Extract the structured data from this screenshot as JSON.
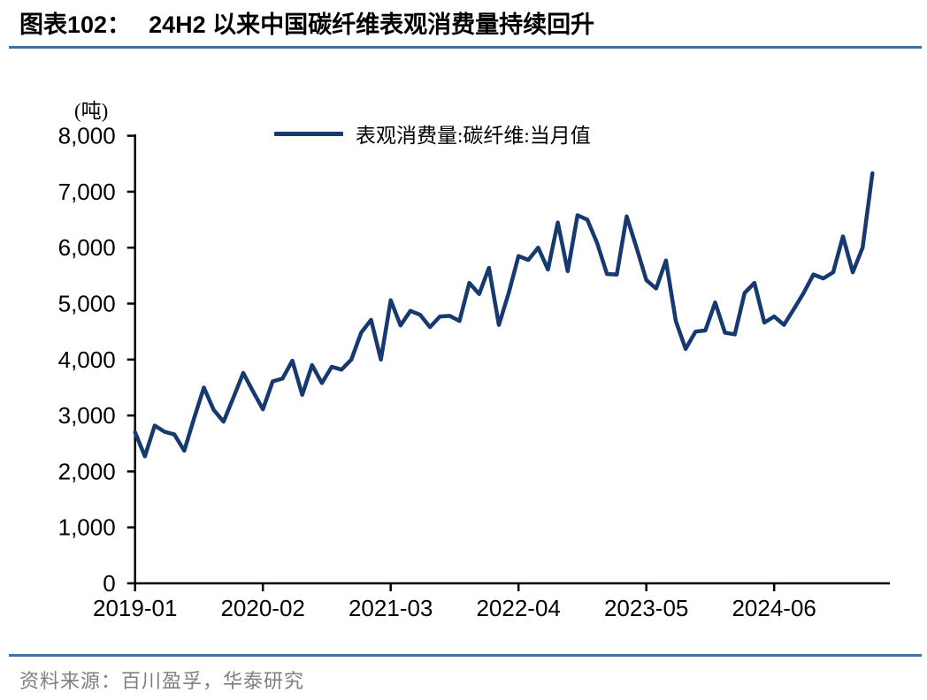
{
  "header": {
    "chart_label": "图表102：",
    "title": "24H2 以来中国碳纤维表观消费量持续回升"
  },
  "chart": {
    "unit": "(吨)",
    "legend": "表观消费量:碳纤维:当月值",
    "line_color": "#16396F",
    "accent_rule_color": "#41719C"
  },
  "footer": {
    "source": "资料来源：百川盈孚，华泰研究"
  },
  "chart_data": {
    "type": "line",
    "title": "24H2 以来中国碳纤维表观消费量持续回升",
    "ylabel": "(吨)",
    "xlabel": "",
    "ylim": [
      0,
      8000
    ],
    "yticks": [
      0,
      1000,
      2000,
      3000,
      4000,
      5000,
      6000,
      7000,
      8000
    ],
    "xticks": [
      "2019-01",
      "2020-02",
      "2021-03",
      "2022-04",
      "2023-05",
      "2024-06"
    ],
    "grid": false,
    "legend_position": "top",
    "x": [
      "2019-01",
      "2019-02",
      "2019-03",
      "2019-04",
      "2019-05",
      "2019-06",
      "2019-07",
      "2019-08",
      "2019-09",
      "2019-10",
      "2019-11",
      "2019-12",
      "2020-01",
      "2020-02",
      "2020-03",
      "2020-04",
      "2020-05",
      "2020-06",
      "2020-07",
      "2020-08",
      "2020-09",
      "2020-10",
      "2020-11",
      "2020-12",
      "2021-01",
      "2021-02",
      "2021-03",
      "2021-04",
      "2021-05",
      "2021-06",
      "2021-07",
      "2021-08",
      "2021-09",
      "2021-10",
      "2021-11",
      "2021-12",
      "2022-01",
      "2022-02",
      "2022-03",
      "2022-04",
      "2022-05",
      "2022-06",
      "2022-07",
      "2022-08",
      "2022-09",
      "2022-10",
      "2022-11",
      "2022-12",
      "2023-01",
      "2023-02",
      "2023-03",
      "2023-04",
      "2023-05",
      "2023-06",
      "2023-07",
      "2023-08",
      "2023-09",
      "2023-10",
      "2023-11",
      "2023-12",
      "2024-01",
      "2024-02",
      "2024-03",
      "2024-04",
      "2024-05",
      "2024-06",
      "2024-07",
      "2024-08",
      "2024-09",
      "2024-10",
      "2024-11",
      "2024-12",
      "2025-01",
      "2025-02",
      "2025-03",
      "2025-04"
    ],
    "series": [
      {
        "name": "表观消费量:碳纤维:当月值",
        "values": [
          2700,
          2270,
          2820,
          2710,
          2660,
          2370,
          2950,
          3500,
          3100,
          2890,
          3320,
          3760,
          3430,
          3110,
          3610,
          3660,
          3980,
          3370,
          3900,
          3580,
          3870,
          3820,
          4000,
          4480,
          4710,
          4000,
          5060,
          4610,
          4870,
          4800,
          4580,
          4770,
          4780,
          4690,
          5370,
          5170,
          5640,
          4620,
          5190,
          5850,
          5780,
          6000,
          5610,
          6450,
          5580,
          6580,
          6500,
          6080,
          5530,
          5520,
          6560,
          6000,
          5420,
          5270,
          5770,
          4690,
          4190,
          4500,
          4520,
          5020,
          4480,
          4450,
          5190,
          5370,
          4660,
          4770,
          4620,
          4900,
          5190,
          5520,
          5450,
          5560,
          6200,
          5560,
          6000,
          7330
        ]
      }
    ]
  }
}
